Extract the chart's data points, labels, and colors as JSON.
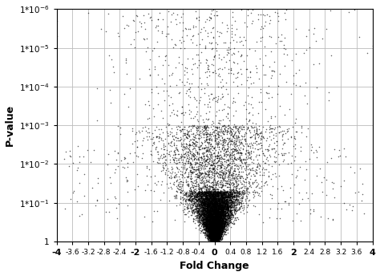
{
  "title": "",
  "xlabel": "Fold Change",
  "ylabel": "P-value",
  "xlim": [
    -4,
    4
  ],
  "xticks_minor": [
    -3.6,
    -3.2,
    -2.8,
    -2.4,
    -1.6,
    -1.2,
    -0.8,
    -0.4,
    0.4,
    0.8,
    1.2,
    1.6,
    2.4,
    2.8,
    3.2,
    3.6
  ],
  "xticks_major": [
    -4,
    -2,
    0,
    2,
    4
  ],
  "yticks": [
    1e-06,
    1e-05,
    0.0001,
    0.001,
    0.01,
    0.1,
    1
  ],
  "ytick_labels": [
    "1*10$^{-6}$",
    "1*10$^{-5}$",
    "1*10$^{-4}$",
    "1*10$^{-3}$",
    "1*10$^{-2}$",
    "1*10$^{-1}$",
    "1"
  ],
  "point_color": "#000000",
  "point_size": 1.2,
  "point_alpha": 0.6,
  "background_color": "#ffffff",
  "grid_color": "#bbbbbb",
  "n_points": 12000,
  "seed": 99
}
